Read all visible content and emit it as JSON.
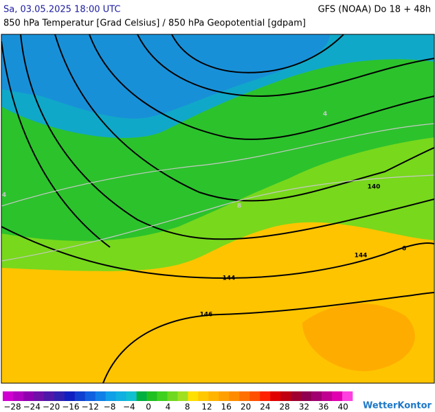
{
  "header": {
    "datetime": "Sa, 03.05.2025 18:00 UTC",
    "model": "GFS (NOAA) Do 18 + 48h",
    "subtitle": "850 hPa Temperatur [Grad Celsius] / 850 hPa Geopotential [gdpam]"
  },
  "map": {
    "contour_labels": [
      "4",
      "4",
      "8",
      "140",
      "144",
      "144",
      "146",
      "6"
    ]
  },
  "legend": {
    "labels": [
      "−28",
      "−24",
      "−20",
      "−16",
      "−12",
      "−8",
      "−4",
      "0",
      "4",
      "8",
      "12",
      "16",
      "20",
      "24",
      "28",
      "32",
      "36",
      "40"
    ],
    "colors": [
      "#d000d0",
      "#b000c0",
      "#9000b0",
      "#7010a8",
      "#5018a8",
      "#3020b0",
      "#1020c0",
      "#1040d0",
      "#1060e0",
      "#1080e8",
      "#10a0e8",
      "#10b0e0",
      "#10c0d0",
      "#00b040",
      "#20c020",
      "#40d020",
      "#70d820",
      "#a0e020",
      "#ffe000",
      "#ffc800",
      "#ffb400",
      "#ffa000",
      "#ff8c00",
      "#ff7000",
      "#ff5000",
      "#ff2000",
      "#e00000",
      "#c00010",
      "#a00030",
      "#900050",
      "#a00070",
      "#c00090",
      "#e000b0",
      "#ff40e0"
    ],
    "brand": "WetterKontor"
  }
}
